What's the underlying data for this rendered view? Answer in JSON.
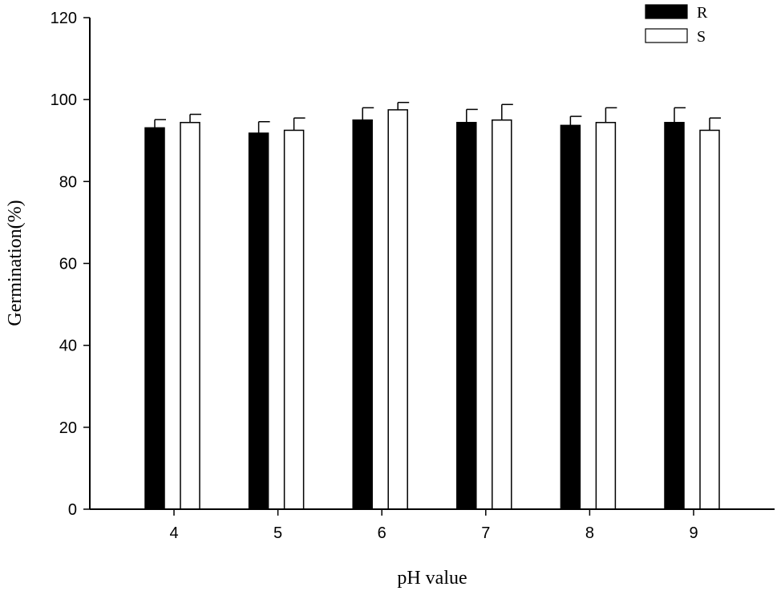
{
  "chart_data": {
    "type": "bar",
    "title": "",
    "xlabel": "pH value",
    "ylabel": "Germination(%)",
    "categories": [
      "4",
      "5",
      "6",
      "7",
      "8",
      "9"
    ],
    "ylim": [
      0,
      120
    ],
    "yticks": [
      "0",
      "20",
      "40",
      "60",
      "80",
      "100",
      "120"
    ],
    "grid": false,
    "legend_position": "top-right",
    "series": [
      {
        "name": "R",
        "color": "#000000",
        "values": [
          93.1,
          91.8,
          95.0,
          94.4,
          93.7,
          94.4
        ],
        "errors": [
          2.0,
          2.8,
          3.0,
          3.2,
          2.2,
          3.6
        ]
      },
      {
        "name": "S",
        "color": "#ffffff",
        "values": [
          94.4,
          92.5,
          97.5,
          95.0,
          94.4,
          92.5
        ],
        "errors": [
          2.0,
          3.0,
          1.8,
          3.8,
          3.6,
          3.0
        ]
      }
    ]
  }
}
